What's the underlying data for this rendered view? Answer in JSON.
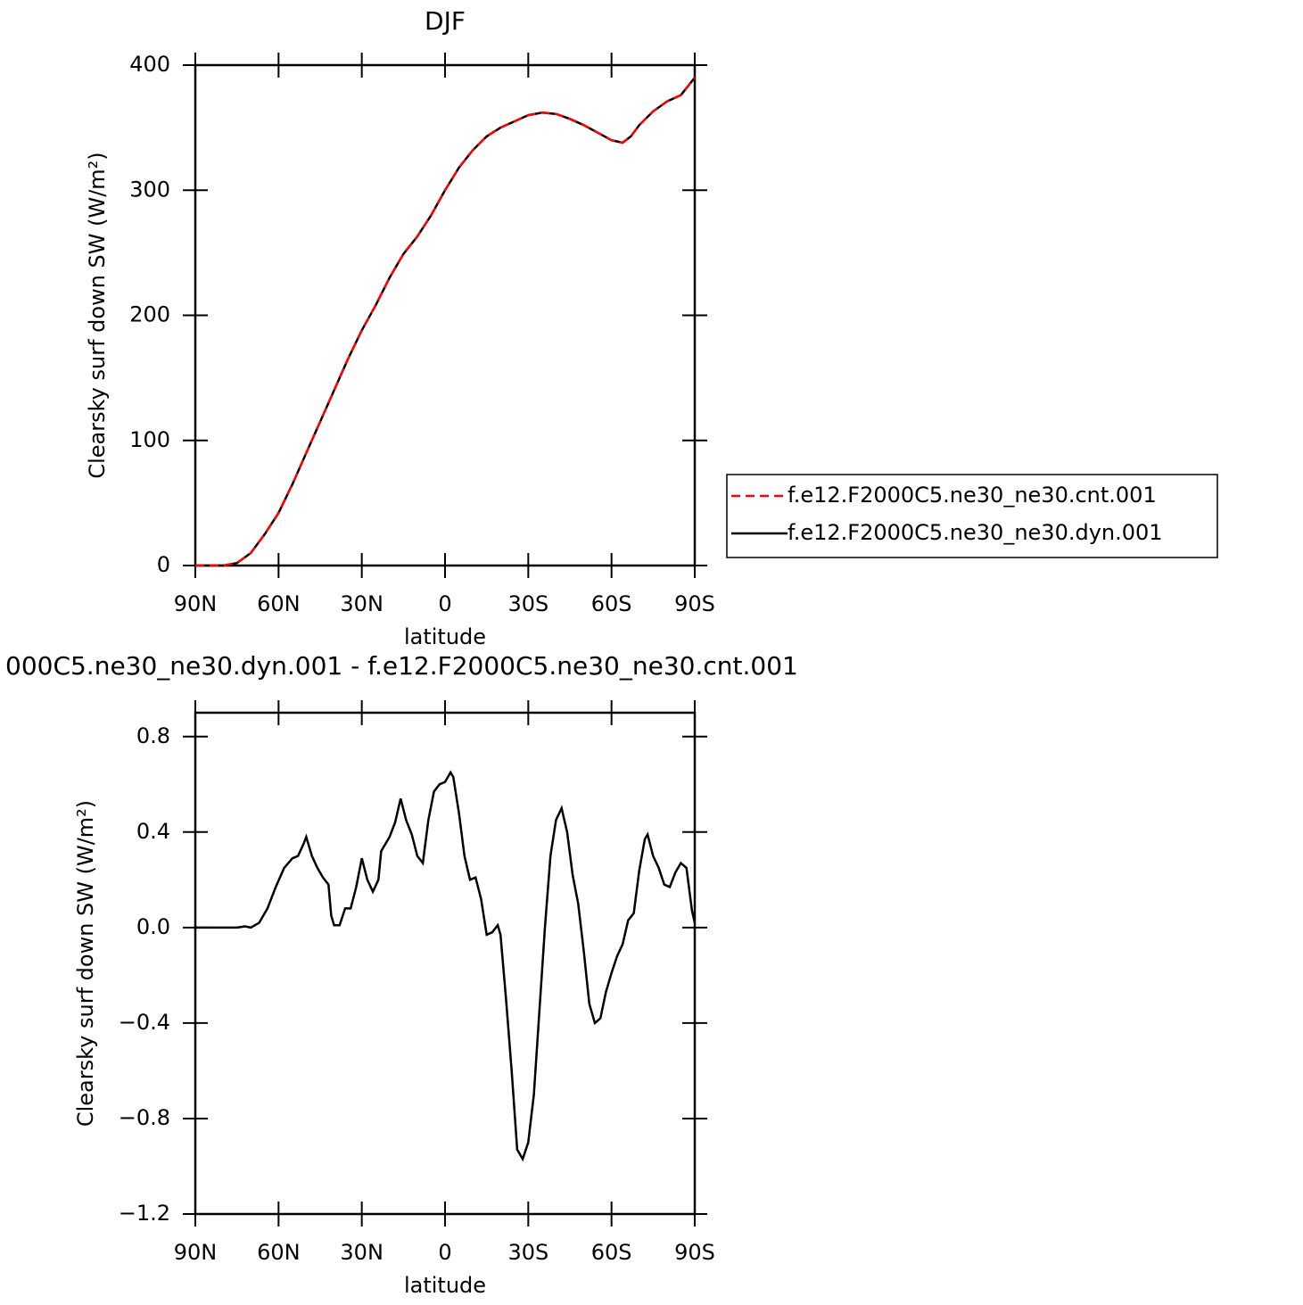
{
  "chart_data": [
    {
      "type": "line",
      "title": "DJF",
      "ylabel": "Clearsky surf down SW (W/m²)",
      "xlabel": "latitude",
      "xlim": [
        90,
        -90
      ],
      "xticks": [
        {
          "value": 90,
          "label": "90N"
        },
        {
          "value": 60,
          "label": "60N"
        },
        {
          "value": 30,
          "label": "30N"
        },
        0,
        {
          "value": -30,
          "label": "30S"
        },
        {
          "value": -60,
          "label": "60S"
        },
        {
          "value": -90,
          "label": "90S"
        }
      ],
      "ylim": [
        0,
        400
      ],
      "yticks": [
        0,
        100,
        200,
        300,
        400
      ],
      "legend": "right",
      "x": [
        90,
        85,
        80,
        75,
        70,
        65,
        60,
        55,
        50,
        45,
        40,
        35,
        30,
        25,
        20,
        15,
        10,
        5,
        0,
        -5,
        -10,
        -15,
        -20,
        -25,
        -30,
        -35,
        -40,
        -45,
        -50,
        -55,
        -60,
        -64,
        -67,
        -70,
        -75,
        -80,
        -85,
        -90
      ],
      "series": [
        {
          "name": "f.e12.F2000C5.ne30_ne30.cnt.001",
          "color": "#ff0000",
          "dashed": true,
          "values": [
            0,
            0,
            0,
            2,
            10,
            25,
            42,
            65,
            90,
            115,
            140,
            165,
            188,
            208,
            230,
            249,
            263,
            280,
            300,
            318,
            332,
            343,
            350,
            355,
            360,
            362,
            361,
            357,
            352,
            346,
            340,
            338,
            343,
            352,
            363,
            371,
            376,
            390
          ]
        },
        {
          "name": "f.e12.F2000C5.ne30_ne30.dyn.001",
          "color": "#000000",
          "dashed": false,
          "values": [
            0,
            0,
            0,
            2,
            10,
            25,
            42,
            65,
            90,
            115,
            140,
            165,
            188,
            208,
            230,
            249,
            263,
            280,
            300,
            318,
            332,
            343,
            350,
            355,
            360,
            362,
            361,
            357,
            352,
            346,
            340,
            338,
            343,
            352,
            363,
            371,
            376,
            390
          ]
        }
      ]
    },
    {
      "type": "line",
      "title": "000C5.ne30_ne30.dyn.001 - f.e12.F2000C5.ne30_ne30.cnt.001",
      "ylabel": "Clearsky surf down SW (W/m²)",
      "xlabel": "latitude",
      "xlim": [
        90,
        -90
      ],
      "xticks": [
        {
          "value": 90,
          "label": "90N"
        },
        {
          "value": 60,
          "label": "60N"
        },
        {
          "value": 30,
          "label": "30N"
        },
        0,
        {
          "value": -30,
          "label": "30S"
        },
        {
          "value": -60,
          "label": "60S"
        },
        {
          "value": -90,
          "label": "90S"
        }
      ],
      "ylim": [
        -1.2,
        0.9
      ],
      "yticks": [
        {
          "value": 0.8,
          "label": "0.8"
        },
        {
          "value": 0.4,
          "label": "0.4"
        },
        {
          "value": 0,
          "label": "0.0"
        },
        {
          "value": -0.4,
          "label": "−0.4"
        },
        {
          "value": -0.8,
          "label": "−0.8"
        },
        {
          "value": -1.2,
          "label": "−1.2"
        }
      ],
      "x": [
        90,
        80,
        75,
        72,
        70,
        67,
        64,
        61,
        58,
        55,
        53,
        51,
        50,
        48,
        46,
        44,
        42,
        41,
        40,
        38,
        36,
        34,
        32,
        30,
        28,
        26,
        24,
        23,
        20,
        18,
        16,
        14,
        12,
        10,
        8,
        6,
        4,
        2,
        0,
        -2,
        -3,
        -5,
        -7,
        -9,
        -11,
        -13,
        -15,
        -17,
        -19,
        -20,
        -22,
        -24,
        -26,
        -28,
        -30,
        -32,
        -34,
        -36,
        -38,
        -40,
        -42,
        -44,
        -46,
        -48,
        -50,
        -52,
        -54,
        -56,
        -58,
        -60,
        -62,
        -64,
        -66,
        -68,
        -70,
        -72,
        -73,
        -75,
        -77,
        -79,
        -81,
        -83,
        -85,
        -87,
        -89,
        -90
      ],
      "series": [
        {
          "color": "#000000",
          "dashed": false,
          "values": [
            0,
            0,
            0,
            0.005,
            0,
            0.02,
            0.08,
            0.17,
            0.25,
            0.29,
            0.3,
            0.35,
            0.38,
            0.3,
            0.25,
            0.21,
            0.18,
            0.05,
            0.01,
            0.01,
            0.08,
            0.08,
            0.17,
            0.29,
            0.2,
            0.15,
            0.2,
            0.32,
            0.38,
            0.44,
            0.54,
            0.45,
            0.39,
            0.3,
            0.27,
            0.45,
            0.57,
            0.6,
            0.61,
            0.65,
            0.63,
            0.48,
            0.3,
            0.2,
            0.21,
            0.12,
            -0.03,
            -0.02,
            0.01,
            -0.03,
            -0.3,
            -0.6,
            -0.93,
            -0.97,
            -0.9,
            -0.7,
            -0.35,
            0,
            0.3,
            0.45,
            0.5,
            0.4,
            0.22,
            0.1,
            -0.1,
            -0.32,
            -0.4,
            -0.38,
            -0.27,
            -0.19,
            -0.12,
            -0.07,
            0.03,
            0.06,
            0.24,
            0.37,
            0.39,
            0.3,
            0.25,
            0.18,
            0.17,
            0.23,
            0.27,
            0.25,
            0.07,
            0.02
          ]
        }
      ]
    }
  ]
}
